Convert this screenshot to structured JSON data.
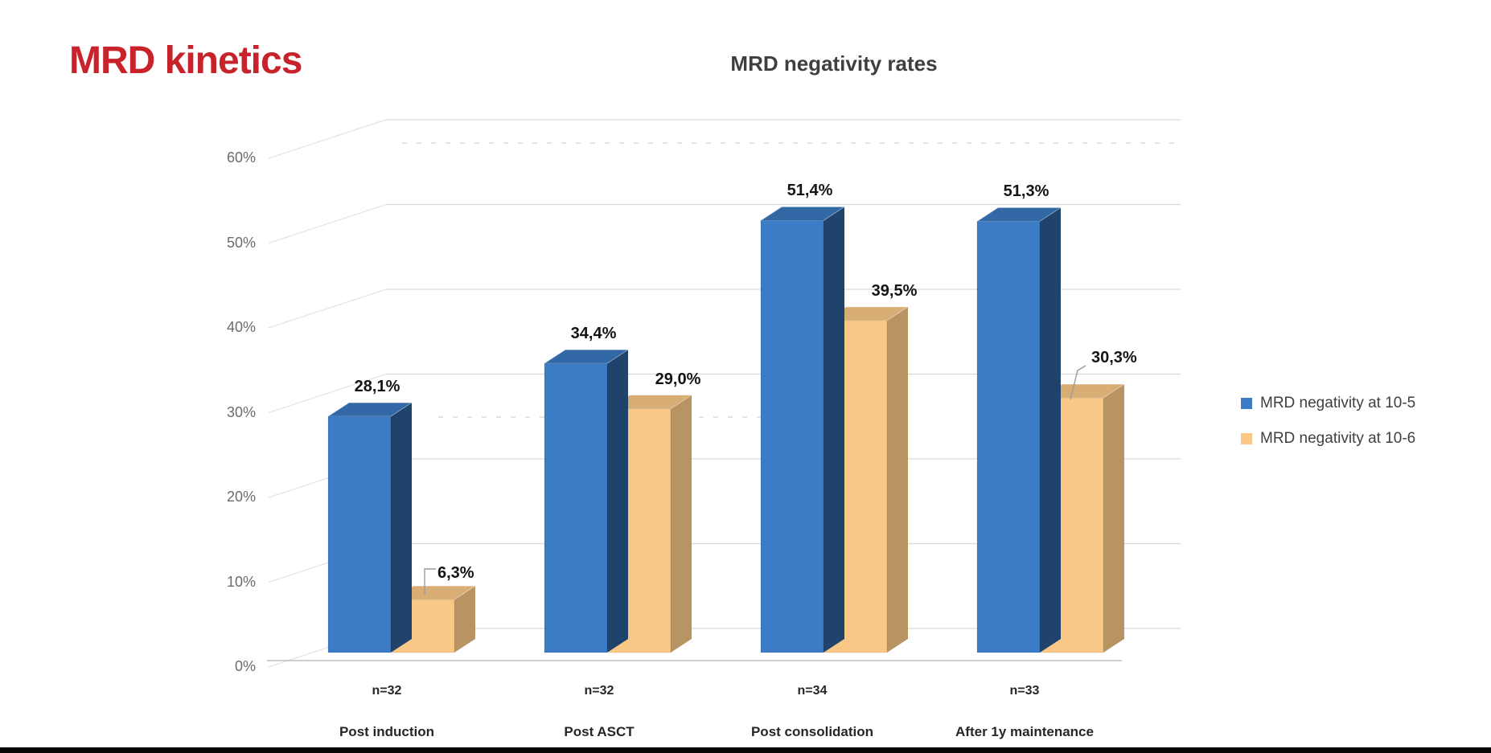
{
  "slide": {
    "title": "MRD kinetics",
    "title_color": "#c8232b"
  },
  "chart_data": {
    "type": "bar",
    "style": "3d-clustered-column",
    "title": "MRD negativity rates",
    "categories": [
      "Post induction",
      "Post ASCT",
      "Post consolidation",
      "After 1y maintenance"
    ],
    "category_counts": [
      "n=32",
      "n=32",
      "n=34",
      "n=33"
    ],
    "series": [
      {
        "name": "MRD negativity at 10-5",
        "color": "#3c7cc6",
        "values": [
          28.1,
          34.4,
          51.4,
          51.3
        ],
        "value_labels": [
          "28,1%",
          "34,4%",
          "51,4%",
          "51,3%"
        ]
      },
      {
        "name": "MRD negativity at 10-6",
        "color": "#f9c886",
        "values": [
          6.3,
          29.0,
          39.5,
          30.3
        ],
        "value_labels": [
          "6,3%",
          "29,0%",
          "39,5%",
          "30,3%"
        ]
      }
    ],
    "y_ticks": [
      "0%",
      "10%",
      "20%",
      "30%",
      "40%",
      "50%",
      "60%"
    ],
    "ylim": [
      0,
      60
    ],
    "grid": true,
    "legend_position": "right"
  }
}
